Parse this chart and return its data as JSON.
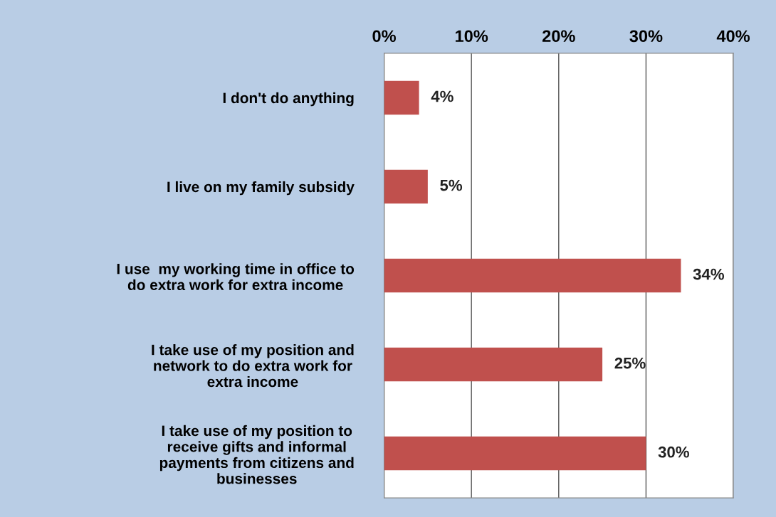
{
  "chart_data": {
    "type": "bar",
    "orientation": "horizontal",
    "categories": [
      "I don't do anything",
      "I live on my family subsidy",
      "I use  my working time in office to\ndo extra work for extra income",
      "I take use of my position and\nnetwork to do extra work for\nextra income",
      "I take use of my position to\nreceive gifts and informal\npayments from citizens and\nbusinesses"
    ],
    "values": [
      4,
      5,
      34,
      25,
      30
    ],
    "value_labels": [
      "4%",
      "5%",
      "34%",
      "25%",
      "30%"
    ],
    "color": "#c0504d",
    "xlim": [
      0,
      40
    ],
    "xticks": [
      {
        "value": 0,
        "label": "0%"
      },
      {
        "value": 10,
        "label": "10%"
      },
      {
        "value": 20,
        "label": "20%"
      },
      {
        "value": 30,
        "label": "30%"
      },
      {
        "value": 40,
        "label": "40%"
      }
    ],
    "grid": "x"
  }
}
